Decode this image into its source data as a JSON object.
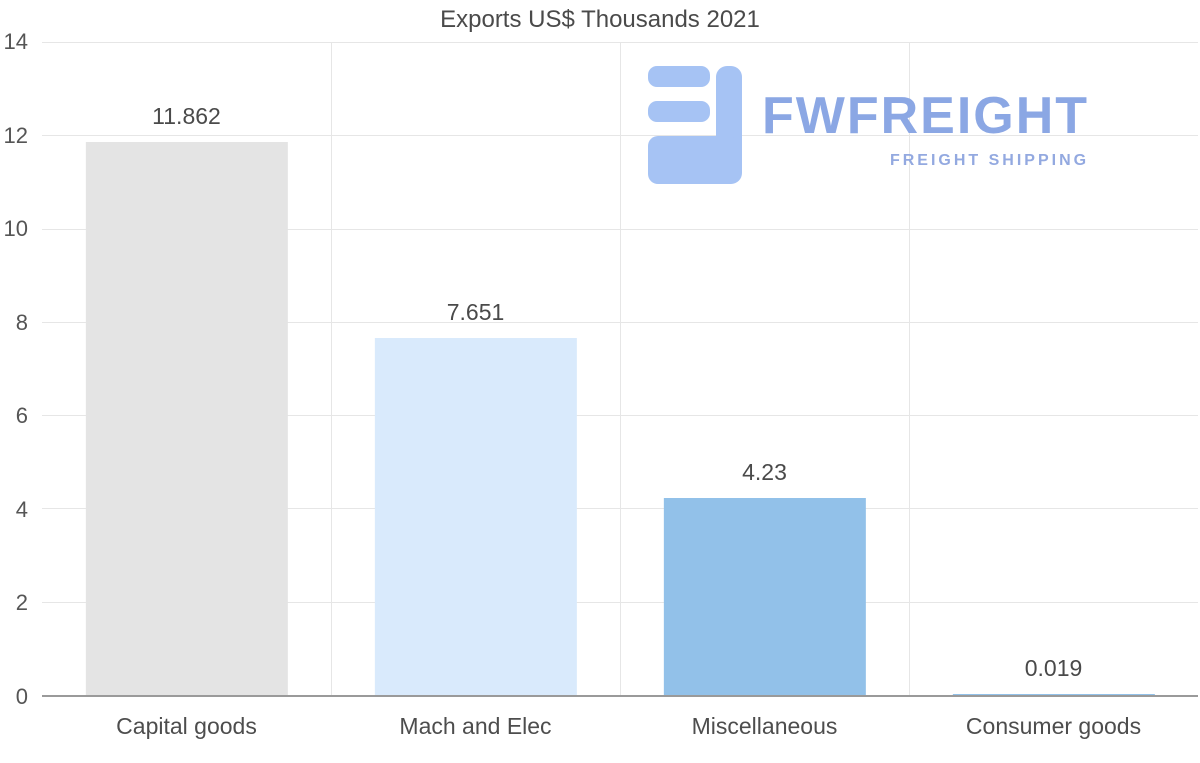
{
  "chart_data": {
    "type": "bar",
    "title": "Exports US$ Thousands 2021",
    "categories": [
      "Capital goods",
      "Mach and Elec",
      "Miscellaneous",
      "Consumer goods"
    ],
    "values": [
      11.862,
      7.651,
      4.23,
      0.019
    ],
    "value_labels": [
      "11.862",
      "7.651",
      "4.23",
      "0.019"
    ],
    "bar_colors": [
      "#e4e4e4",
      "#d9eafc",
      "#92c1e9",
      "#92c1e9"
    ],
    "xlabel": "",
    "ylabel": "",
    "ylim": [
      0,
      14
    ],
    "yticks": [
      0,
      2,
      4,
      6,
      8,
      10,
      12,
      14
    ],
    "grid": true,
    "legend": "none"
  },
  "logo": {
    "name": "FWFREIGHT",
    "tagline": "FREIGHT SHIPPING",
    "icon": "fwfreight-mark",
    "color": "#8ba7e4",
    "icon_color": "#a6c3f4"
  },
  "colors": {
    "background": "#ffffff",
    "gridline": "#e6e6e6",
    "axis_line": "#9a9a9a",
    "title_text": "#4a4a4a",
    "tick_text": "#555555"
  }
}
